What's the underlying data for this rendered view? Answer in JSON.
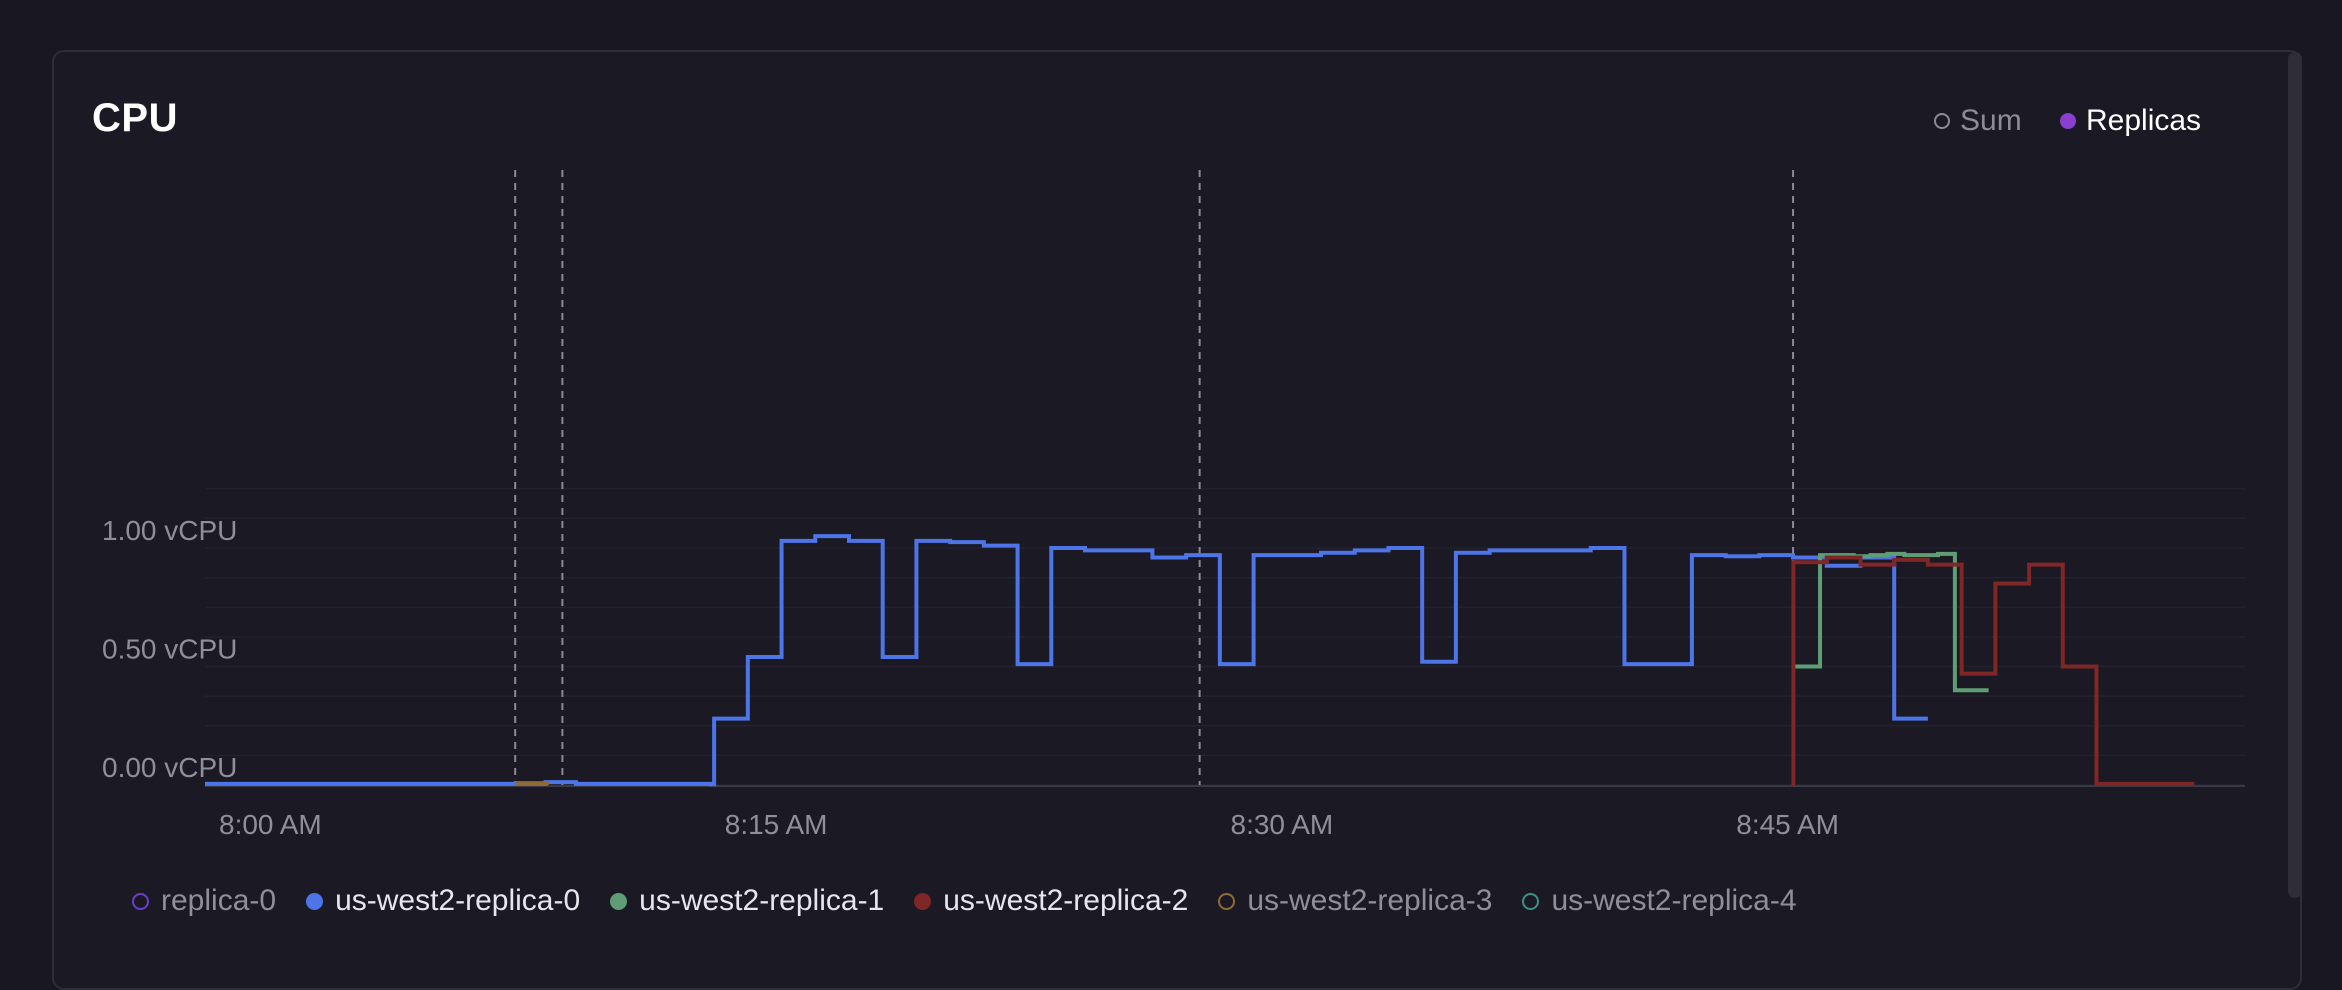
{
  "panel": {
    "title": "CPU",
    "toggles": {
      "sum_label": "Sum",
      "replicas_label": "Replicas",
      "replicas_color": "#8a3fd1"
    }
  },
  "chart_data": {
    "type": "line",
    "step": true,
    "title": "CPU",
    "ylabel": "",
    "xlabel": "",
    "ylim": [
      0,
      1.3
    ],
    "y_ticks": [
      {
        "value": 0.0,
        "label": "0.00 vCPU"
      },
      {
        "value": 0.5,
        "label": "0.50 vCPU"
      },
      {
        "value": 1.0,
        "label": "1.00 vCPU"
      }
    ],
    "x_range_minutes": [
      0,
      60
    ],
    "x_ticks": [
      {
        "minute": 0,
        "label": "8:00 AM"
      },
      {
        "minute": 15,
        "label": "8:15 AM"
      },
      {
        "minute": 30,
        "label": "8:30 AM"
      },
      {
        "minute": 45,
        "label": "8:45 AM"
      }
    ],
    "event_markers_minutes": [
      9.2,
      10.6,
      29.5,
      47.1
    ],
    "series": [
      {
        "name": "replica-0",
        "color": "#6a3fc8",
        "filled_marker": false,
        "points": []
      },
      {
        "name": "us-west2-replica-0",
        "color": "#4d75e8",
        "filled_marker": true,
        "points": [
          [
            0,
            0.005
          ],
          [
            10,
            0.005
          ],
          [
            10.1,
            0.012
          ],
          [
            11,
            0.005
          ],
          [
            15,
            0.003
          ],
          [
            15.1,
            0.28
          ],
          [
            16.1,
            0.54
          ],
          [
            17.1,
            1.03
          ],
          [
            18.1,
            1.05
          ],
          [
            19.1,
            1.03
          ],
          [
            20.1,
            0.54
          ],
          [
            21.1,
            1.03
          ],
          [
            22.1,
            1.025
          ],
          [
            23.1,
            1.01
          ],
          [
            24.1,
            0.51
          ],
          [
            25.1,
            1.0
          ],
          [
            26.1,
            0.99
          ],
          [
            27.1,
            0.99
          ],
          [
            28.1,
            0.96
          ],
          [
            29.1,
            0.97
          ],
          [
            30.1,
            0.51
          ],
          [
            31.1,
            0.97
          ],
          [
            32.1,
            0.97
          ],
          [
            33.1,
            0.98
          ],
          [
            34.1,
            0.99
          ],
          [
            35.1,
            1.0
          ],
          [
            36.1,
            0.52
          ],
          [
            37.1,
            0.98
          ],
          [
            38.1,
            0.99
          ],
          [
            39.1,
            0.99
          ],
          [
            40.1,
            0.99
          ],
          [
            41.1,
            1.0
          ],
          [
            42.1,
            0.51
          ],
          [
            43.1,
            0.51
          ],
          [
            44.1,
            0.97
          ],
          [
            45.1,
            0.965
          ],
          [
            46.1,
            0.97
          ],
          [
            47.1,
            0.96
          ],
          [
            48.1,
            0.925
          ],
          [
            49.1,
            0.96
          ],
          [
            50.1,
            0.28
          ],
          [
            51.1,
            0.28
          ]
        ]
      },
      {
        "name": "us-west2-replica-1",
        "color": "#5f9e74",
        "filled_marker": true,
        "points": [
          [
            47.1,
            0.5
          ],
          [
            47.4,
            0.5
          ],
          [
            47.9,
            0.97
          ],
          [
            48.4,
            0.97
          ],
          [
            48.9,
            0.965
          ],
          [
            49.4,
            0.97
          ],
          [
            49.9,
            0.975
          ],
          [
            50.4,
            0.97
          ],
          [
            50.9,
            0.97
          ],
          [
            51.4,
            0.975
          ],
          [
            51.9,
            0.4
          ],
          [
            52.9,
            0.4
          ]
        ]
      },
      {
        "name": "us-west2-replica-2",
        "color": "#7f2626",
        "filled_marker": true,
        "points": [
          [
            47.1,
            0.0
          ],
          [
            47.11,
            0.94
          ],
          [
            48.1,
            0.96
          ],
          [
            49.1,
            0.93
          ],
          [
            50.1,
            0.95
          ],
          [
            51.1,
            0.93
          ],
          [
            52.1,
            0.47
          ],
          [
            53.1,
            0.85
          ],
          [
            54.1,
            0.93
          ],
          [
            55.1,
            0.5
          ],
          [
            56.1,
            0.005
          ],
          [
            59,
            0.005
          ]
        ]
      },
      {
        "name": "us-west2-replica-3",
        "color": "#8e6a35",
        "filled_marker": false,
        "points": [
          [
            9.2,
            0.008
          ],
          [
            10.2,
            0.008
          ]
        ]
      },
      {
        "name": "us-west2-replica-4",
        "color": "#3e8f84",
        "filled_marker": false,
        "points": []
      }
    ]
  }
}
